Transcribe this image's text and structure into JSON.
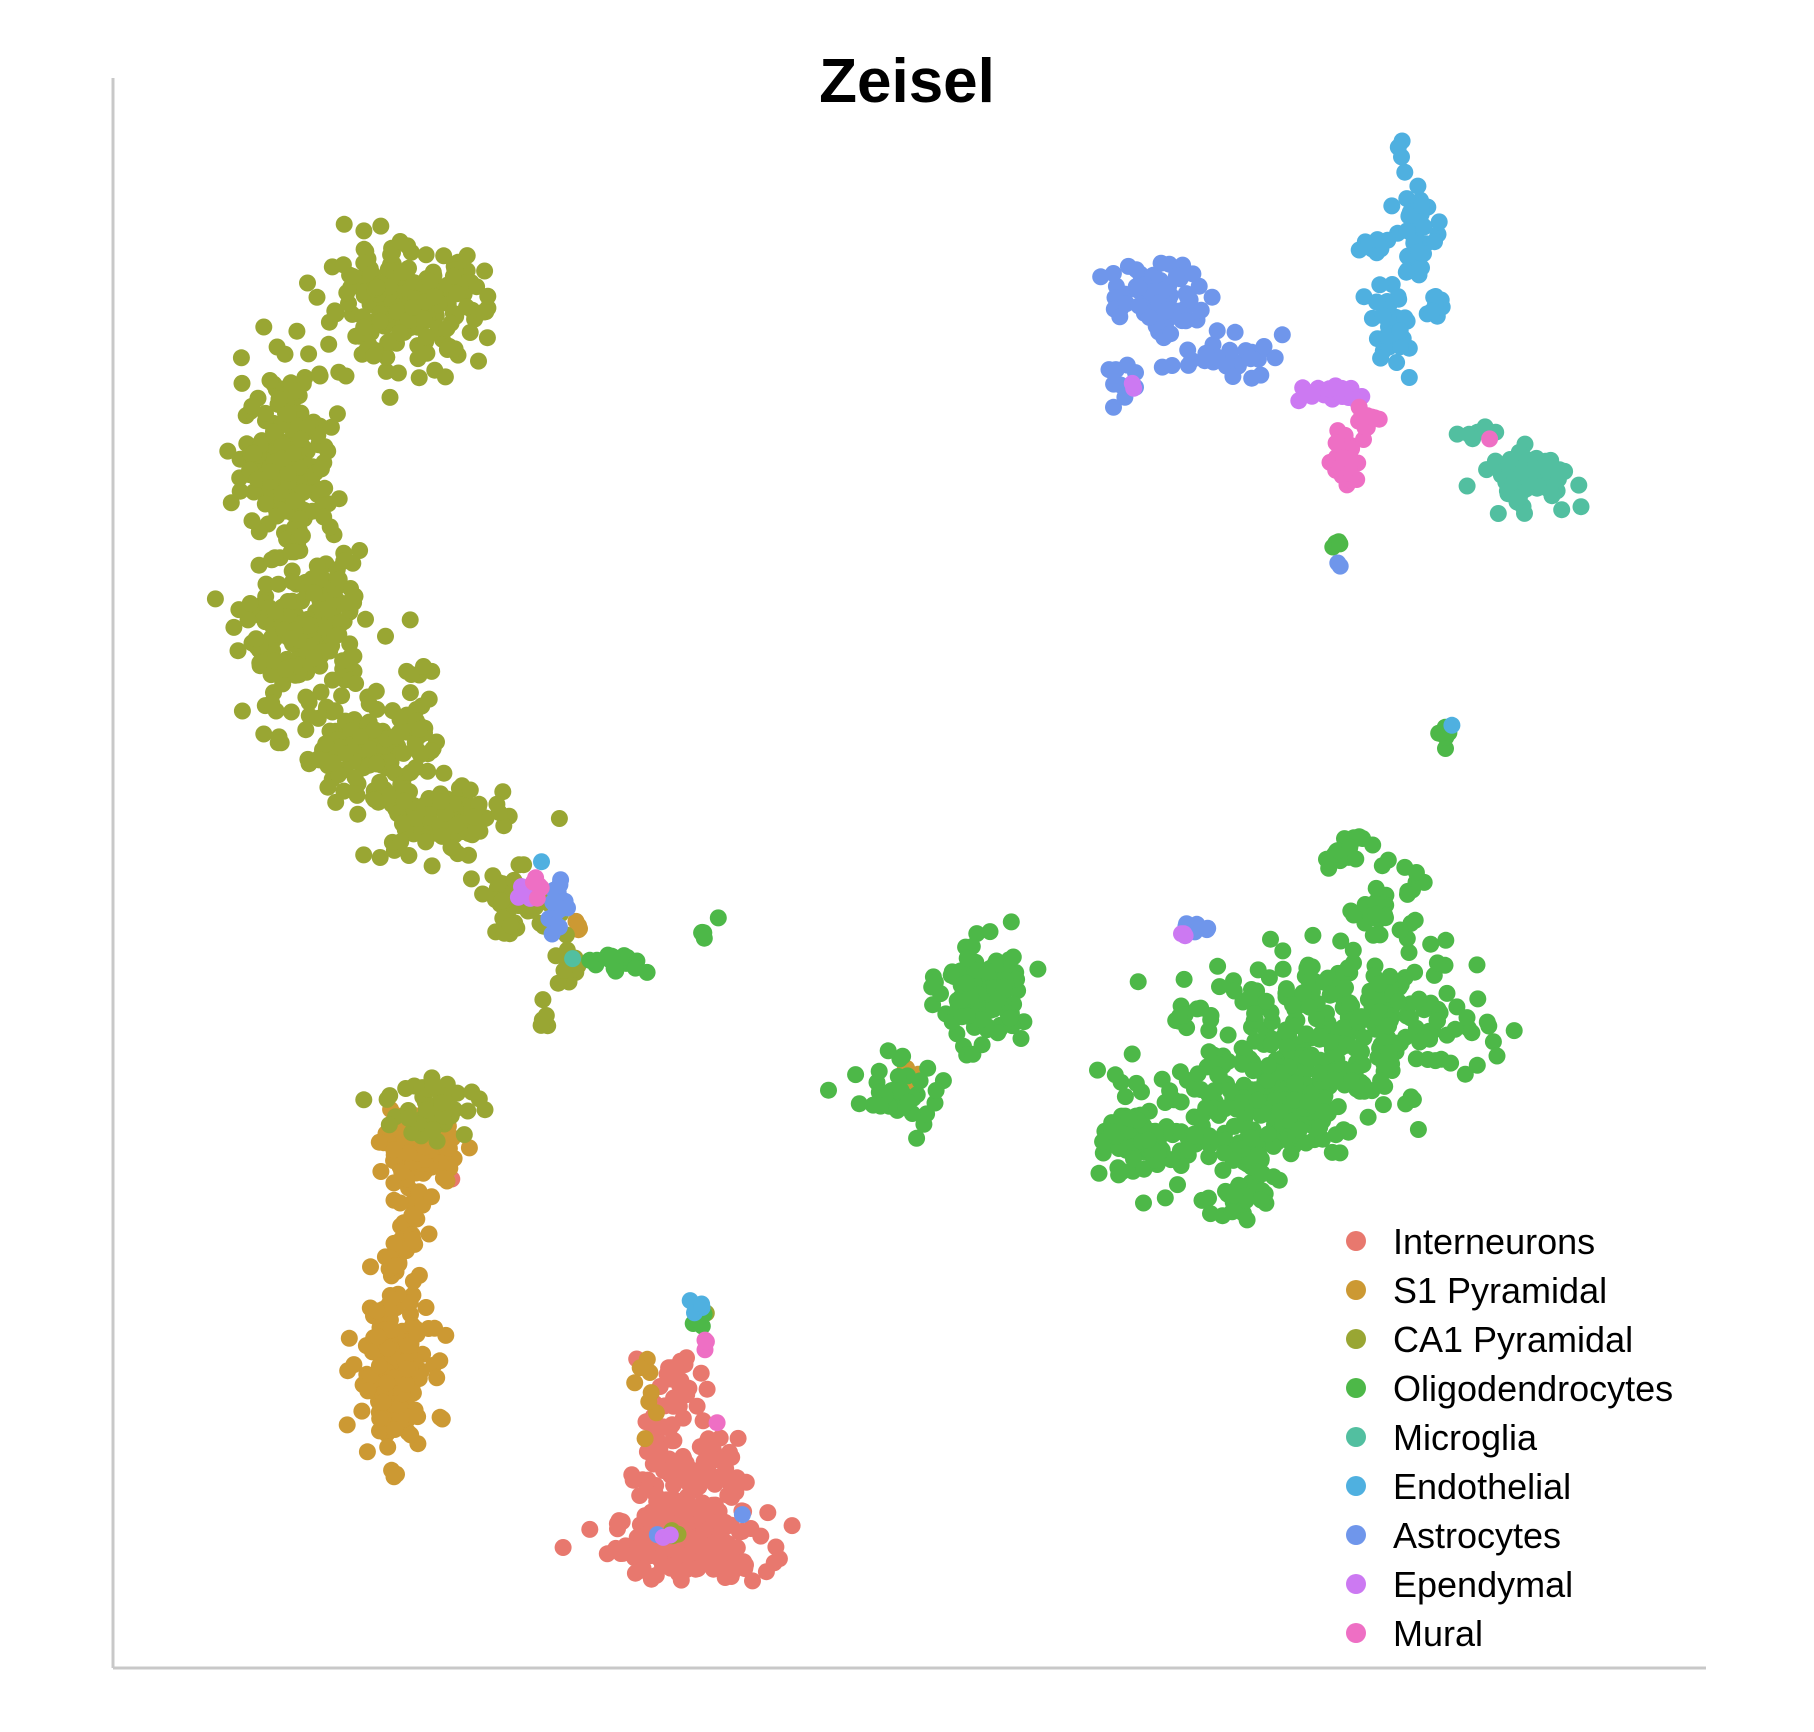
{
  "chart_data": {
    "type": "scatter",
    "title": "Zeisel",
    "xlabel": "",
    "ylabel": "",
    "xlim": [
      0,
      100
    ],
    "ylim": [
      0,
      100
    ],
    "grid": false,
    "axes_ticks": false,
    "legend_position": "bottom-right",
    "series": [
      {
        "name": "Interneurons",
        "color": "#E8786E",
        "clusters": [
          {
            "cx": 35.8,
            "cy": 5.0,
            "sx": 3.4,
            "sy": 1.5,
            "n": 170
          },
          {
            "cx": 35.5,
            "cy": 10.0,
            "sx": 2.3,
            "sy": 2.4,
            "n": 80
          },
          {
            "cx": 34.8,
            "cy": 15.0,
            "sx": 1.2,
            "sy": 2.0,
            "n": 35
          },
          {
            "cx": 19.9,
            "cy": 29.4,
            "sx": 0.5,
            "sy": 0.4,
            "n": 2
          }
        ]
      },
      {
        "name": "S1 Pyramidal",
        "color": "#CC9933",
        "clusters": [
          {
            "cx": 16.3,
            "cy": 16.5,
            "sx": 1.6,
            "sy": 3.5,
            "n": 170
          },
          {
            "cx": 17.0,
            "cy": 25.5,
            "sx": 0.9,
            "sy": 2.2,
            "n": 40
          },
          {
            "cx": 18.2,
            "cy": 31.5,
            "sx": 1.6,
            "sy": 1.6,
            "n": 100
          },
          {
            "cx": 33.5,
            "cy": 15.0,
            "sx": 0.8,
            "sy": 1.5,
            "n": 8
          },
          {
            "cx": 28.2,
            "cy": 46.4,
            "sx": 0.4,
            "sy": 0.5,
            "n": 4
          },
          {
            "cx": 49.5,
            "cy": 35.0,
            "sx": 1.5,
            "sy": 1.2,
            "n": 8
          }
        ]
      },
      {
        "name": "CA1 Pyramidal",
        "color": "#99A633",
        "clusters": [
          {
            "cx": 17.0,
            "cy": 88.0,
            "sx": 3.5,
            "sy": 2.5,
            "n": 220
          },
          {
            "cx": 9.5,
            "cy": 78.0,
            "sx": 2.0,
            "sy": 4.0,
            "n": 200
          },
          {
            "cx": 10.5,
            "cy": 66.0,
            "sx": 2.6,
            "sy": 3.5,
            "n": 200
          },
          {
            "cx": 14.5,
            "cy": 58.0,
            "sx": 3.0,
            "sy": 2.2,
            "n": 120
          },
          {
            "cx": 19.2,
            "cy": 53.5,
            "sx": 3.0,
            "sy": 1.8,
            "n": 90
          },
          {
            "cx": 24.5,
            "cy": 48.0,
            "sx": 1.8,
            "sy": 1.4,
            "n": 45
          },
          {
            "cx": 28.2,
            "cy": 43.5,
            "sx": 1.2,
            "sy": 0.8,
            "n": 12
          },
          {
            "cx": 18.2,
            "cy": 60.0,
            "sx": 0.6,
            "sy": 3.0,
            "n": 20
          },
          {
            "cx": 19.0,
            "cy": 34.5,
            "sx": 2.0,
            "sy": 1.5,
            "n": 45
          },
          {
            "cx": 26.5,
            "cy": 40.5,
            "sx": 0.4,
            "sy": 0.8,
            "n": 5
          },
          {
            "cx": 36.5,
            "cy": 20.5,
            "sx": 0.4,
            "sy": 0.5,
            "n": 4
          },
          {
            "cx": 35.0,
            "cy": 6.0,
            "sx": 0.6,
            "sy": 0.5,
            "n": 3
          }
        ]
      },
      {
        "name": "Oligodendrocytes",
        "color": "#4DB848",
        "clusters": [
          {
            "cx": 79.0,
            "cy": 40.0,
            "sx": 6.0,
            "sy": 3.0,
            "n": 260
          },
          {
            "cx": 74.0,
            "cy": 35.0,
            "sx": 4.8,
            "sy": 2.5,
            "n": 180
          },
          {
            "cx": 72.0,
            "cy": 30.0,
            "sx": 1.8,
            "sy": 2.5,
            "n": 60
          },
          {
            "cx": 66.2,
            "cy": 32.0,
            "sx": 2.0,
            "sy": 2.0,
            "n": 90
          },
          {
            "cx": 81.5,
            "cy": 48.0,
            "sx": 1.5,
            "sy": 1.6,
            "n": 35
          },
          {
            "cx": 55.0,
            "cy": 42.0,
            "sx": 1.8,
            "sy": 2.3,
            "n": 120
          },
          {
            "cx": 49.5,
            "cy": 35.0,
            "sx": 2.0,
            "sy": 1.6,
            "n": 40
          },
          {
            "cx": 85.5,
            "cy": 59.5,
            "sx": 0.3,
            "sy": 1.0,
            "n": 6
          },
          {
            "cx": 79.0,
            "cy": 51.5,
            "sx": 1.0,
            "sy": 1.0,
            "n": 18
          },
          {
            "cx": 78.2,
            "cy": 71.5,
            "sx": 0.3,
            "sy": 0.5,
            "n": 4
          },
          {
            "cx": 31.0,
            "cy": 44.0,
            "sx": 1.5,
            "sy": 0.5,
            "n": 15
          },
          {
            "cx": 37.0,
            "cy": 46.0,
            "sx": 0.5,
            "sy": 0.3,
            "n": 5
          },
          {
            "cx": 68.5,
            "cy": 40.5,
            "sx": 0.8,
            "sy": 0.7,
            "n": 8
          },
          {
            "cx": 36.5,
            "cy": 20.0,
            "sx": 0.5,
            "sy": 0.5,
            "n": 4
          }
        ]
      },
      {
        "name": "Microglia",
        "color": "#52BFA0",
        "clusters": [
          {
            "cx": 91.0,
            "cy": 76.5,
            "sx": 2.0,
            "sy": 1.2,
            "n": 70
          },
          {
            "cx": 87.8,
            "cy": 79.5,
            "sx": 0.7,
            "sy": 0.6,
            "n": 8
          },
          {
            "cx": 28.0,
            "cy": 43.8,
            "sx": 0.3,
            "sy": 0.3,
            "n": 1
          }
        ]
      },
      {
        "name": "Endothelial",
        "color": "#4FB0E0",
        "clusters": [
          {
            "cx": 83.5,
            "cy": 93.0,
            "sx": 0.8,
            "sy": 2.0,
            "n": 40
          },
          {
            "cx": 82.0,
            "cy": 86.5,
            "sx": 1.0,
            "sy": 2.0,
            "n": 30
          },
          {
            "cx": 80.5,
            "cy": 92.0,
            "sx": 1.3,
            "sy": 0.6,
            "n": 10
          },
          {
            "cx": 85.0,
            "cy": 87.5,
            "sx": 0.8,
            "sy": 0.8,
            "n": 8
          },
          {
            "cx": 82.5,
            "cy": 98.5,
            "sx": 0.2,
            "sy": 0.4,
            "n": 3
          },
          {
            "cx": 36.5,
            "cy": 20.5,
            "sx": 0.4,
            "sy": 0.5,
            "n": 5
          },
          {
            "cx": 25.8,
            "cy": 50.5,
            "sx": 0.3,
            "sy": 0.3,
            "n": 1
          },
          {
            "cx": 86.0,
            "cy": 60.0,
            "sx": 0.2,
            "sy": 0.2,
            "n": 1
          }
        ]
      },
      {
        "name": "Astrocytes",
        "color": "#6F96EB",
        "clusters": [
          {
            "cx": 66.5,
            "cy": 88.5,
            "sx": 2.0,
            "sy": 1.6,
            "n": 70
          },
          {
            "cx": 71.0,
            "cy": 84.5,
            "sx": 2.5,
            "sy": 0.9,
            "n": 30
          },
          {
            "cx": 64.0,
            "cy": 83.0,
            "sx": 0.7,
            "sy": 1.2,
            "n": 10
          },
          {
            "cx": 27.0,
            "cy": 47.5,
            "sx": 0.5,
            "sy": 1.3,
            "n": 14
          },
          {
            "cx": 69.5,
            "cy": 46.5,
            "sx": 0.6,
            "sy": 0.4,
            "n": 6
          },
          {
            "cx": 78.5,
            "cy": 70.5,
            "sx": 0.2,
            "sy": 0.2,
            "n": 2
          },
          {
            "cx": 34.0,
            "cy": 6.0,
            "sx": 0.3,
            "sy": 0.3,
            "n": 1
          },
          {
            "cx": 39.5,
            "cy": 7.0,
            "sx": 0.3,
            "sy": 0.3,
            "n": 1
          }
        ]
      },
      {
        "name": "Ependymal",
        "color": "#CC79F2",
        "clusters": [
          {
            "cx": 78.0,
            "cy": 82.0,
            "sx": 1.4,
            "sy": 0.5,
            "n": 15
          },
          {
            "cx": 25.0,
            "cy": 48.5,
            "sx": 0.6,
            "sy": 0.8,
            "n": 6
          },
          {
            "cx": 68.5,
            "cy": 46.0,
            "sx": 0.3,
            "sy": 0.3,
            "n": 3
          },
          {
            "cx": 65.0,
            "cy": 82.5,
            "sx": 0.3,
            "sy": 0.3,
            "n": 2
          },
          {
            "cx": 34.5,
            "cy": 5.5,
            "sx": 0.3,
            "sy": 0.3,
            "n": 2
          }
        ]
      },
      {
        "name": "Mural",
        "color": "#EE6FC4",
        "clusters": [
          {
            "cx": 79.0,
            "cy": 77.5,
            "sx": 0.6,
            "sy": 1.2,
            "n": 25
          },
          {
            "cx": 80.5,
            "cy": 80.5,
            "sx": 0.5,
            "sy": 0.8,
            "n": 12
          },
          {
            "cx": 25.8,
            "cy": 49.0,
            "sx": 0.3,
            "sy": 0.6,
            "n": 5
          },
          {
            "cx": 36.8,
            "cy": 18.5,
            "sx": 0.3,
            "sy": 0.5,
            "n": 3
          },
          {
            "cx": 37.5,
            "cy": 13.5,
            "sx": 0.3,
            "sy": 0.3,
            "n": 1
          },
          {
            "cx": 88.5,
            "cy": 79.0,
            "sx": 0.2,
            "sy": 0.2,
            "n": 1
          }
        ]
      }
    ]
  }
}
